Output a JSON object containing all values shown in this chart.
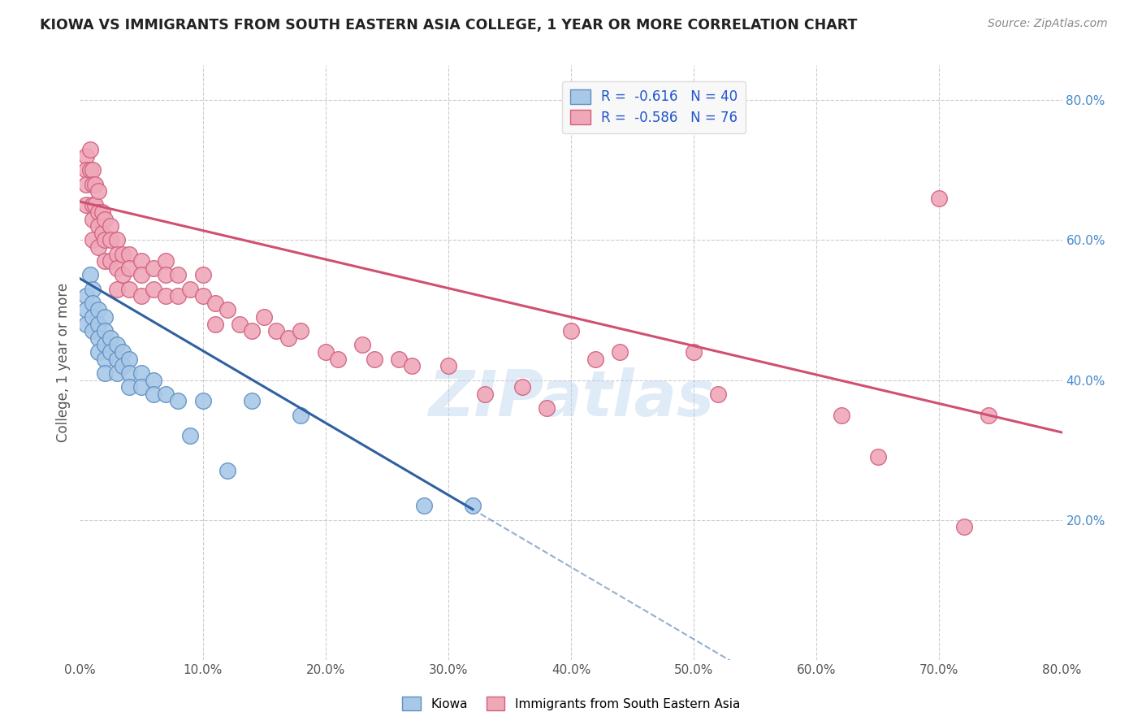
{
  "title": "KIOWA VS IMMIGRANTS FROM SOUTH EASTERN ASIA COLLEGE, 1 YEAR OR MORE CORRELATION CHART",
  "source": "Source: ZipAtlas.com",
  "ylabel": "College, 1 year or more",
  "watermark": "ZIPatlas",
  "xlim": [
    0.0,
    0.8
  ],
  "ylim": [
    0.0,
    0.85
  ],
  "xticks": [
    0.0,
    0.1,
    0.2,
    0.3,
    0.4,
    0.5,
    0.6,
    0.7,
    0.8
  ],
  "yticks_right": [
    0.2,
    0.4,
    0.6,
    0.8
  ],
  "grid_color": "#cccccc",
  "background_color": "#ffffff",
  "kiowa_R": -0.616,
  "kiowa_N": 40,
  "imm_R": -0.586,
  "imm_N": 76,
  "kiowa_color": "#a8c8e8",
  "kiowa_edge_color": "#6090c0",
  "kiowa_line_color": "#3060a0",
  "imm_color": "#f0a8b8",
  "imm_edge_color": "#d06080",
  "imm_line_color": "#d05070",
  "kiowa_scatter_x": [
    0.005,
    0.005,
    0.005,
    0.008,
    0.01,
    0.01,
    0.01,
    0.01,
    0.015,
    0.015,
    0.015,
    0.015,
    0.02,
    0.02,
    0.02,
    0.02,
    0.02,
    0.025,
    0.025,
    0.03,
    0.03,
    0.03,
    0.035,
    0.035,
    0.04,
    0.04,
    0.04,
    0.05,
    0.05,
    0.06,
    0.06,
    0.07,
    0.08,
    0.09,
    0.1,
    0.12,
    0.14,
    0.18,
    0.28,
    0.32
  ],
  "kiowa_scatter_y": [
    0.52,
    0.5,
    0.48,
    0.55,
    0.53,
    0.51,
    0.49,
    0.47,
    0.5,
    0.48,
    0.46,
    0.44,
    0.49,
    0.47,
    0.45,
    0.43,
    0.41,
    0.46,
    0.44,
    0.45,
    0.43,
    0.41,
    0.44,
    0.42,
    0.43,
    0.41,
    0.39,
    0.41,
    0.39,
    0.4,
    0.38,
    0.38,
    0.37,
    0.32,
    0.37,
    0.27,
    0.37,
    0.35,
    0.22,
    0.22
  ],
  "imm_scatter_x": [
    0.005,
    0.005,
    0.005,
    0.005,
    0.008,
    0.008,
    0.01,
    0.01,
    0.01,
    0.01,
    0.01,
    0.012,
    0.012,
    0.015,
    0.015,
    0.015,
    0.015,
    0.018,
    0.018,
    0.02,
    0.02,
    0.02,
    0.025,
    0.025,
    0.025,
    0.03,
    0.03,
    0.03,
    0.03,
    0.035,
    0.035,
    0.04,
    0.04,
    0.04,
    0.05,
    0.05,
    0.05,
    0.06,
    0.06,
    0.07,
    0.07,
    0.07,
    0.08,
    0.08,
    0.09,
    0.1,
    0.1,
    0.11,
    0.11,
    0.12,
    0.13,
    0.14,
    0.15,
    0.16,
    0.17,
    0.18,
    0.2,
    0.21,
    0.23,
    0.24,
    0.26,
    0.27,
    0.3,
    0.33,
    0.36,
    0.38,
    0.4,
    0.42,
    0.44,
    0.5,
    0.52,
    0.62,
    0.65,
    0.7,
    0.72,
    0.74
  ],
  "imm_scatter_y": [
    0.72,
    0.7,
    0.68,
    0.65,
    0.73,
    0.7,
    0.7,
    0.68,
    0.65,
    0.63,
    0.6,
    0.68,
    0.65,
    0.67,
    0.64,
    0.62,
    0.59,
    0.64,
    0.61,
    0.63,
    0.6,
    0.57,
    0.62,
    0.6,
    0.57,
    0.6,
    0.58,
    0.56,
    0.53,
    0.58,
    0.55,
    0.58,
    0.56,
    0.53,
    0.57,
    0.55,
    0.52,
    0.56,
    0.53,
    0.57,
    0.55,
    0.52,
    0.55,
    0.52,
    0.53,
    0.55,
    0.52,
    0.51,
    0.48,
    0.5,
    0.48,
    0.47,
    0.49,
    0.47,
    0.46,
    0.47,
    0.44,
    0.43,
    0.45,
    0.43,
    0.43,
    0.42,
    0.42,
    0.38,
    0.39,
    0.36,
    0.47,
    0.43,
    0.44,
    0.44,
    0.38,
    0.35,
    0.29,
    0.66,
    0.19,
    0.35
  ],
  "legend_box_color": "#f8f8f8",
  "legend_border_color": "#dddddd",
  "kiowa_line_x0": 0.0,
  "kiowa_line_y0": 0.545,
  "kiowa_line_x1": 0.32,
  "kiowa_line_y1": 0.215,
  "imm_line_x0": 0.0,
  "imm_line_y0": 0.655,
  "imm_line_x1": 0.8,
  "imm_line_y1": 0.325
}
